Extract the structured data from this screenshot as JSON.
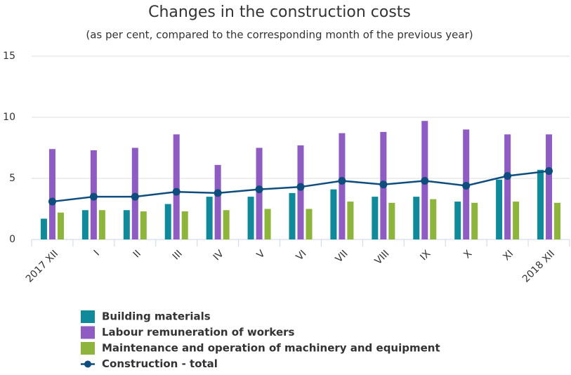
{
  "chart_data": {
    "type": "bar",
    "title": "Changes in the construction costs",
    "subtitle": "(as per cent, compared to the corresponding month of the previous year)",
    "categories": [
      "2017 XII",
      "I",
      "II",
      "III",
      "IV",
      "V",
      "VI",
      "VII",
      "VIII",
      "IX",
      "X",
      "XI",
      "2018 XII"
    ],
    "series": [
      {
        "name": "Building materials",
        "type": "bar",
        "color": "#0e8a9a",
        "values": [
          1.7,
          2.4,
          2.4,
          2.9,
          3.5,
          3.5,
          3.8,
          4.1,
          3.5,
          3.5,
          3.1,
          4.9,
          5.7
        ]
      },
      {
        "name": "Labour remuneration of workers",
        "type": "bar",
        "color": "#8e5cc2",
        "values": [
          7.4,
          7.3,
          7.5,
          8.6,
          6.1,
          7.5,
          7.7,
          8.7,
          8.8,
          9.7,
          9.0,
          8.6,
          8.6
        ]
      },
      {
        "name": "Maintenance and operation of machinery and equipment",
        "type": "bar",
        "color": "#8db53c",
        "values": [
          2.2,
          2.4,
          2.3,
          2.3,
          2.4,
          2.5,
          2.5,
          3.1,
          3.0,
          3.3,
          3.0,
          3.1,
          3.0
        ]
      },
      {
        "name": "Construction - total",
        "type": "line",
        "color": "#0e4d7e",
        "values": [
          3.1,
          3.5,
          3.5,
          3.9,
          3.8,
          4.1,
          4.3,
          4.8,
          4.5,
          4.8,
          4.4,
          5.2,
          5.6
        ]
      }
    ],
    "ylim": [
      0,
      15
    ],
    "yticks": [
      0,
      5,
      10,
      15
    ],
    "grid": true
  }
}
